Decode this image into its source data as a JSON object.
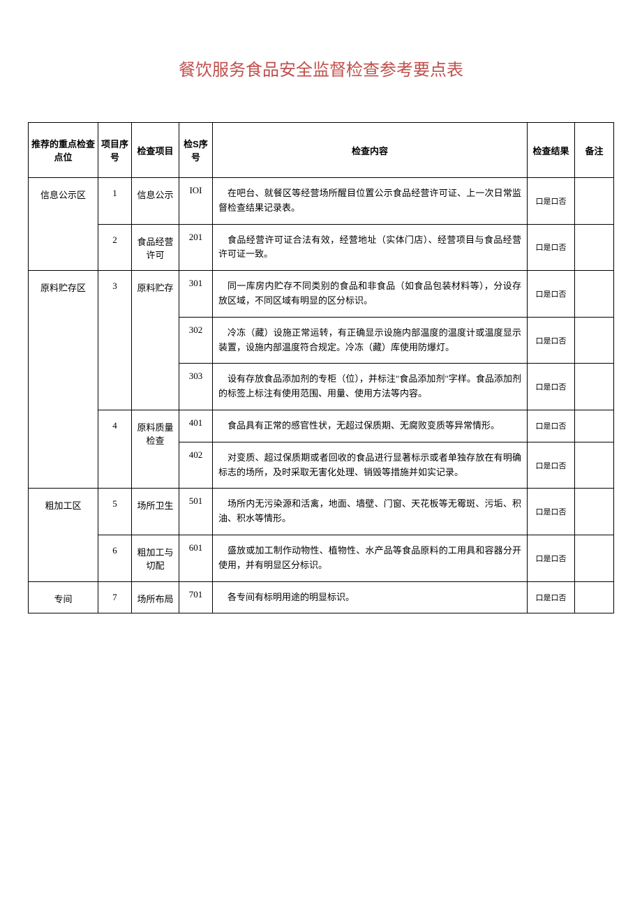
{
  "title": "餐饮服务食品安全监督检查参考要点表",
  "headers": {
    "location": "推荐的重点检查点位",
    "proj_no": "项目序号",
    "proj_name": "检查项目",
    "check_no_prefix": "检",
    "check_no_s": "S",
    "check_no_suffix": "序号",
    "content": "检查内容",
    "result": "检查结果",
    "remark": "备注"
  },
  "result_text": "口是口否",
  "rows": [
    {
      "location": "信息公示区",
      "location_rowspan": 2,
      "proj_no": "1",
      "proj_name": "信息公示",
      "proj_rowspan": 1,
      "check_no": "IOI",
      "content": "在吧台、就餐区等经营场所醒目位置公示食品经营许可证、上一次日常监督检查结果记录表。"
    },
    {
      "proj_no": "2",
      "proj_name": "食品经营许可",
      "proj_rowspan": 1,
      "check_no": "201",
      "content": "食品经营许可证合法有效，经营地址（实体门店）、经营项目与食品经营许可证一致。"
    },
    {
      "location": "原料贮存区",
      "location_rowspan": 5,
      "proj_no": "3",
      "proj_name": "原料贮存",
      "proj_rowspan": 3,
      "check_no": "301",
      "content": "同一库房内贮存不同类别的食品和非食品（如食品包装材料等），分设存放区域，不同区域有明显的区分标识。"
    },
    {
      "check_no": "302",
      "content": "冷冻（藏）设施正常运转，有正确显示设施内部温度的温度计或温度显示装置，设施内部温度符合规定。冷冻（藏）库使用防爆灯。"
    },
    {
      "check_no": "303",
      "content": "设有存放食品添加剂的专柜（位），并标注\"食品添加剂\"字样。食品添加剂的标签上标注有使用范围、用量、使用方法等内容。"
    },
    {
      "proj_no": "4",
      "proj_name": "原料质量检查",
      "proj_rowspan": 2,
      "check_no": "401",
      "content": "食品具有正常的感官性状，无超过保质期、无腐败变质等异常情形。"
    },
    {
      "check_no": "402",
      "content": "对变质、超过保质期或者回收的食品进行显著标示或者单独存放在有明确标志的场所，及时采取无害化处理、销毁等措施并如实记录。"
    },
    {
      "location": "粗加工区",
      "location_rowspan": 2,
      "proj_no": "5",
      "proj_name": "场所卫生",
      "proj_rowspan": 1,
      "check_no": "501",
      "content": "场所内无污染源和活禽，地面、墙壁、门窗、天花板等无霉斑、污垢、积油、积水等情形。"
    },
    {
      "proj_no": "6",
      "proj_name": "粗加工与切配",
      "proj_rowspan": 1,
      "check_no": "601",
      "content": "盛放或加工制作动物性、植物性、水产品等食品原料的工用具和容器分开使用，并有明显区分标识。"
    },
    {
      "location": "专间",
      "location_rowspan": 1,
      "proj_no": "7",
      "proj_name": "场所布局",
      "proj_rowspan": 1,
      "check_no": "701",
      "content": "各专间有标明用途的明显标识。"
    }
  ],
  "styling": {
    "title_color": "#c0504d",
    "border_color": "#000000",
    "background": "#ffffff",
    "title_fontsize": 24,
    "body_fontsize": 13,
    "result_fontsize": 11
  }
}
